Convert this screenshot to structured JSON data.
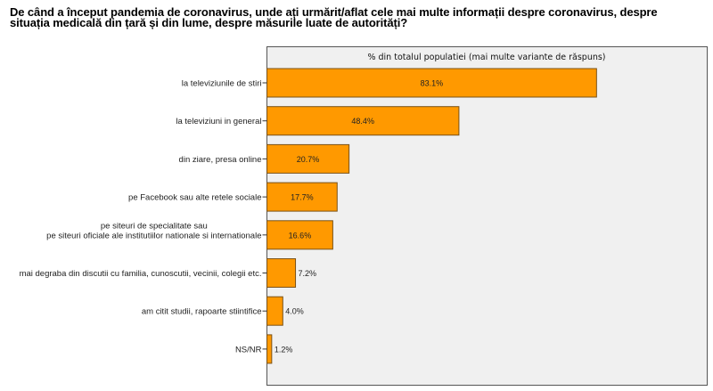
{
  "title_lines": [
    "De când a început pandemia de coronavirus, unde ați urmărit/aflat cele mai multe informații despre coronavirus, despre",
    "situația medicală din țară și din lume, despre măsurile luate de autorități?"
  ],
  "colors": {
    "bar_fill": "#FF9900",
    "bar_border": "#7A5216",
    "plot_background": "#F0F0F0",
    "plot_border": "#555555"
  },
  "chart_data": {
    "type": "bar",
    "orientation": "horizontal",
    "title": "De când a început pandemia de coronavirus, unde ați urmărit/aflat cele mai multe informații despre coronavirus, despre situația medicală din țară și din lume, despre măsurile luate de autorități?",
    "subtitle": "% din totalul populatiei (mai multe variante de răspuns)",
    "xlabel": "",
    "ylabel": "",
    "xlim": [
      0,
      111
    ],
    "grid": false,
    "legend": "none",
    "categories": [
      [
        "la televiziunile de stiri"
      ],
      [
        "la televiziuni in general"
      ],
      [
        "din ziare, presa online"
      ],
      [
        "pe Facebook sau alte retele sociale"
      ],
      [
        "pe siteuri de specialitate sau",
        "pe siteuri oficiale ale institutiilor nationale si internationale"
      ],
      [
        "mai degraba din discutii cu familia, cunoscutii, vecinii, colegii etc."
      ],
      [
        "am citit studii, rapoarte stiintifice"
      ],
      [
        "NS/NR"
      ]
    ],
    "values": [
      83.1,
      48.4,
      20.7,
      17.7,
      16.6,
      7.2,
      4.0,
      1.2
    ],
    "value_labels": [
      "83.1%",
      "48.4%",
      "20.7%",
      "17.7%",
      "16.6%",
      "7.2%",
      "4.0%",
      "1.2%"
    ]
  }
}
